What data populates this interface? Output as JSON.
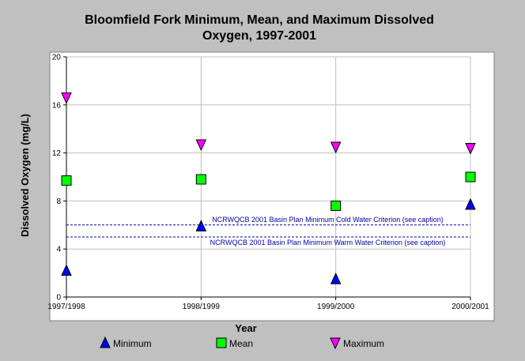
{
  "chart_data": {
    "type": "scatter",
    "title_lines": [
      "Bloomfield Fork Minimum, Mean, and Maximum Dissolved",
      "Oxygen, 1997-2001"
    ],
    "xlabel": "Year",
    "ylabel": "Dissolved Oxygen (mg/L)",
    "categories": [
      "1997/1998",
      "1998/1999",
      "1999/2000",
      "2000/2001"
    ],
    "ylim": [
      0,
      20
    ],
    "yticks": [
      "0",
      "4",
      "8",
      "12",
      "16",
      "20"
    ],
    "grid": true,
    "legend_position": "bottom",
    "series": [
      {
        "name": "Minimum",
        "marker": "triangle-up",
        "color": "#0000ff",
        "values": [
          2.2,
          5.9,
          1.5,
          7.7
        ]
      },
      {
        "name": "Mean",
        "marker": "square",
        "color": "#00ff00",
        "values": [
          9.7,
          9.8,
          7.6,
          10.0
        ]
      },
      {
        "name": "Maximum",
        "marker": "triangle-down",
        "color": "#ff00ff",
        "values": [
          16.6,
          12.7,
          12.5,
          12.4
        ]
      }
    ],
    "reference_lines": [
      {
        "label": "NCRWQCB 2001 Basin Plan Minimum Cold Water Criterion (see caption)",
        "value": 6.0,
        "color": "#0000a0"
      },
      {
        "label": "NCRWQCB 2001 Basin Plan Minimum Warm Water Criterion (see caption)",
        "value": 5.0,
        "color": "#0000a0"
      }
    ]
  }
}
